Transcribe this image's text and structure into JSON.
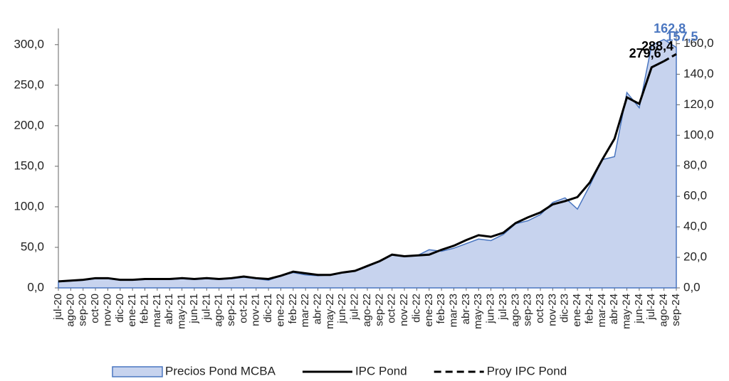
{
  "chart_data": {
    "type": "line",
    "categories": [
      "jul-20",
      "ago-20",
      "sep-20",
      "oct-20",
      "nov-20",
      "dic-20",
      "ene-21",
      "feb-21",
      "mar-21",
      "abr-21",
      "may-21",
      "jun-21",
      "jul-21",
      "ago-21",
      "sep-21",
      "oct-21",
      "nov-21",
      "dic-21",
      "ene-22",
      "feb-22",
      "mar-22",
      "abr-22",
      "may-22",
      "jun-22",
      "jul-22",
      "ago-22",
      "sep-22",
      "oct-22",
      "nov-22",
      "dic-22",
      "ene-23",
      "feb-23",
      "mar-23",
      "abr-23",
      "may-23",
      "jun-23",
      "jul-23",
      "ago-23",
      "sep-23",
      "oct-23",
      "nov-23",
      "dic-23",
      "ene-24",
      "feb-24",
      "mar-24",
      "abr-24",
      "may-24",
      "jun-24",
      "jul-24",
      "ago-24",
      "sep-24"
    ],
    "series": [
      {
        "name": "Precios Pond MCBA",
        "kind": "area",
        "axis": "y2",
        "color": "#c7d3ee",
        "line_color": "#4a76c0",
        "values": [
          4,
          4.5,
          5,
          6,
          6,
          5,
          5,
          5.5,
          5.5,
          5.5,
          6,
          5.5,
          6,
          5.5,
          6,
          7,
          6,
          5,
          8,
          10,
          8.5,
          8,
          8.5,
          10,
          11,
          14,
          17.5,
          21.5,
          20.5,
          21,
          25,
          24,
          26,
          29,
          32,
          31,
          35,
          42,
          44,
          48,
          56,
          59,
          51.6,
          67,
          84,
          86,
          128,
          118,
          159,
          162.8,
          157.5
        ],
        "value_labels": [
          null,
          null,
          null,
          null,
          null,
          null,
          null,
          null,
          null,
          null,
          null,
          null,
          null,
          null,
          null,
          null,
          null,
          null,
          null,
          null,
          null,
          null,
          null,
          null,
          null,
          null,
          null,
          null,
          null,
          null,
          null,
          null,
          null,
          null,
          null,
          null,
          null,
          null,
          null,
          null,
          null,
          null,
          null,
          null,
          null,
          null,
          null,
          null,
          null,
          "162,8",
          "157,5"
        ]
      },
      {
        "name": "IPC Pond",
        "kind": "line",
        "color": "#000000",
        "values": [
          8,
          9,
          10,
          12,
          12,
          10,
          10,
          11,
          11,
          11,
          12,
          11,
          12,
          11,
          12,
          14,
          12,
          11,
          15,
          20,
          18,
          16,
          16,
          19,
          21,
          27,
          33,
          41,
          39,
          40,
          41,
          47,
          52,
          59,
          65,
          63,
          68,
          80,
          87,
          93,
          103,
          107,
          112,
          130,
          158,
          184,
          235,
          227,
          272,
          279.6,
          null
        ],
        "value_labels": [
          null,
          null,
          null,
          null,
          null,
          null,
          null,
          null,
          null,
          null,
          null,
          null,
          null,
          null,
          null,
          null,
          null,
          null,
          null,
          null,
          null,
          null,
          null,
          null,
          null,
          null,
          null,
          null,
          null,
          null,
          null,
          null,
          null,
          null,
          null,
          null,
          null,
          null,
          null,
          null,
          null,
          null,
          null,
          null,
          null,
          null,
          null,
          null,
          null,
          "279,6",
          null
        ]
      },
      {
        "name": "Proy IPC Pond",
        "kind": "dashed",
        "color": "#000000",
        "values": [
          null,
          null,
          null,
          null,
          null,
          null,
          null,
          null,
          null,
          null,
          null,
          null,
          null,
          null,
          null,
          null,
          null,
          null,
          null,
          null,
          null,
          null,
          null,
          null,
          null,
          null,
          null,
          null,
          null,
          null,
          null,
          null,
          null,
          null,
          null,
          null,
          null,
          null,
          null,
          null,
          null,
          null,
          null,
          null,
          null,
          null,
          null,
          null,
          null,
          279.6,
          288.4
        ],
        "value_labels": [
          null,
          null,
          null,
          null,
          null,
          null,
          null,
          null,
          null,
          null,
          null,
          null,
          null,
          null,
          null,
          null,
          null,
          null,
          null,
          null,
          null,
          null,
          null,
          null,
          null,
          null,
          null,
          null,
          null,
          null,
          null,
          null,
          null,
          null,
          null,
          null,
          null,
          null,
          null,
          null,
          null,
          null,
          null,
          null,
          null,
          null,
          null,
          null,
          null,
          null,
          "288,4"
        ]
      }
    ],
    "ylim": [
      0,
      320
    ],
    "yticks": [
      {
        "value": 0,
        "label": "0,0"
      },
      {
        "value": 50,
        "label": "50,0"
      },
      {
        "value": 100,
        "label": "100,0"
      },
      {
        "value": 150,
        "label": "150,0"
      },
      {
        "value": 200,
        "label": "200,0"
      },
      {
        "value": 250,
        "label": "250,0"
      },
      {
        "value": 300,
        "label": "300,0"
      }
    ],
    "y2lim": [
      0,
      170
    ],
    "y2ticks": [
      {
        "value": 0,
        "label": "0,0"
      },
      {
        "value": 20,
        "label": "20,0"
      },
      {
        "value": 40,
        "label": "40,0"
      },
      {
        "value": 60,
        "label": "60,0"
      },
      {
        "value": 80,
        "label": "80,0"
      },
      {
        "value": 100,
        "label": "100,0"
      },
      {
        "value": 120,
        "label": "120,0"
      },
      {
        "value": 140,
        "label": "140,0"
      },
      {
        "value": 160,
        "label": "160,0"
      }
    ],
    "legend": "bottom"
  }
}
